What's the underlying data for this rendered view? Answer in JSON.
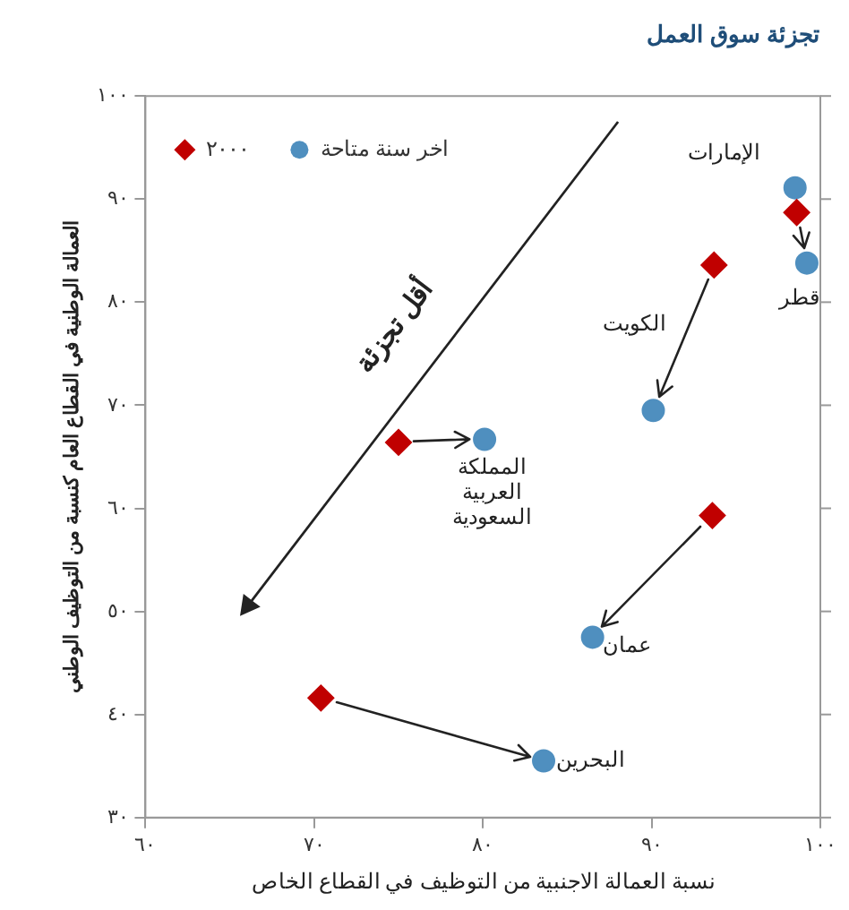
{
  "chart_data": {
    "type": "scatter",
    "title": "تجزئة سوق العمل",
    "xlabel": "نسبة العمالة الاجنبية من التوظيف في القطاع الخاص",
    "ylabel": "العمالة الوطنية في القطاع العام كنسبة من التوظيف الوطني",
    "xlim": [
      60,
      100
    ],
    "xticks": [
      {
        "value": 60,
        "label": "٦٠"
      },
      {
        "value": 70,
        "label": "٧٠"
      },
      {
        "value": 80,
        "label": "٨٠"
      },
      {
        "value": 90,
        "label": "٩٠"
      },
      {
        "value": 100,
        "label": "١٠٠"
      }
    ],
    "ylim": [
      30,
      100
    ],
    "yticks": [
      {
        "value": 30,
        "label": "٣٠"
      },
      {
        "value": 40,
        "label": "٤٠"
      },
      {
        "value": 50,
        "label": "٥٠"
      },
      {
        "value": 60,
        "label": "٦٠"
      },
      {
        "value": 70,
        "label": "٧٠"
      },
      {
        "value": 80,
        "label": "٨٠"
      },
      {
        "value": 90,
        "label": "٩٠"
      },
      {
        "value": 100,
        "label": "١٠٠"
      }
    ],
    "grid": false,
    "legend": "top left",
    "series": [
      {
        "name": "٢٠٠٠",
        "color": "#c00000",
        "marker": "diamond",
        "x": [
          null,
          98.6,
          93.7,
          75,
          93.6,
          70.4
        ],
        "values": [
          null,
          88.7,
          83.6,
          66.4,
          59.3,
          41.6
        ]
      },
      {
        "name": "اخر سنة متاحة",
        "color": "#4f8fbf",
        "marker": "circle",
        "x": [
          98.5,
          99.2,
          90.1,
          80.1,
          86.5,
          83.6
        ],
        "values": [
          91.1,
          83.8,
          69.5,
          66.7,
          47.5,
          35.5
        ]
      }
    ],
    "annotations": [
      {
        "text": "الإمارات",
        "x": 98.5,
        "y": 91.1
      },
      {
        "text": "قطر",
        "x": 99.2,
        "y": 83.8
      },
      "الكويت",
      {
        "text": "المملكة\nالعربية\nالسعودية",
        "x": 80.1,
        "y": 66.7
      },
      {
        "text": "عمان",
        "x": 86.5,
        "y": 47.5
      },
      {
        "text": "البحرين",
        "x": 83.6,
        "y": 35.5
      },
      "أقل تجزئة"
    ]
  }
}
